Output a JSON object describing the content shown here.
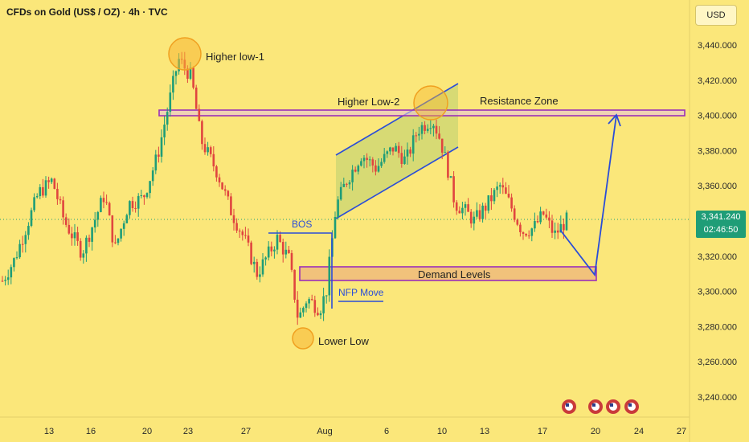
{
  "header": {
    "title": "CFDs on Gold (US$ / OZ) · 4h · TVC",
    "currency_button": "USD"
  },
  "price_box": {
    "price": "3,341.240",
    "countdown": "02:46:50"
  },
  "chart_data": {
    "type": "candlestick",
    "y_ticks": [
      "3,440.000",
      "3,420.000",
      "3,400.000",
      "3,380.000",
      "3,360.000",
      "3,340.000",
      "3,320.000",
      "3,300.000",
      "3,280.000",
      "3,260.000",
      "3,240.000"
    ],
    "y_values": [
      3440,
      3420,
      3400,
      3380,
      3360,
      3340,
      3320,
      3300,
      3280,
      3260,
      3240
    ],
    "ylim": [
      3236,
      3454
    ],
    "x_ticks": [
      "13",
      "16",
      "20",
      "23",
      "27",
      "Aug",
      "6",
      "10",
      "13",
      "17",
      "20",
      "24",
      "27"
    ],
    "current_price": 3341.24,
    "bull_color": "#1f9d77",
    "bear_color": "#e0453f",
    "annotations": {
      "higher_low_1": "Higher low-1",
      "higher_low_2": "Higher Low-2",
      "resistance_zone": "Resistance Zone",
      "bos": "BOS",
      "nfp_move": "NFP Move",
      "demand_levels": "Demand Levels",
      "lower_low": "Lower Low"
    },
    "resistance_zone_range": [
      3400,
      3403
    ],
    "demand_zone_range": [
      3305,
      3313
    ],
    "bos_level": 3333,
    "projection_prices": [
      3321,
      3308,
      3399
    ]
  }
}
